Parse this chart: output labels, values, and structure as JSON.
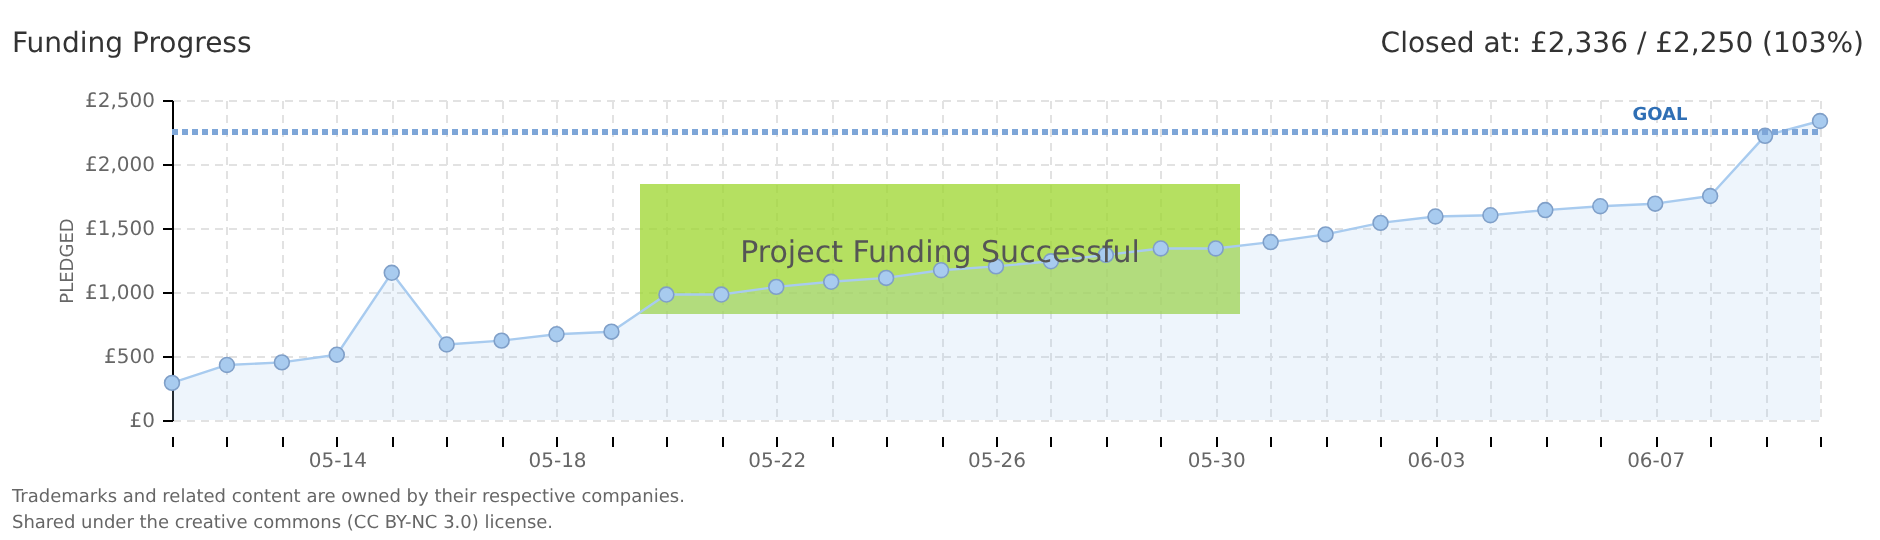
{
  "chart_data": {
    "type": "area",
    "title": "Funding Progress",
    "subtitle": "Closed at:  £2,336 / £2,250 (103%)",
    "ylabel": "PLEDGED",
    "categories": [
      null,
      null,
      null,
      "05-14",
      null,
      null,
      null,
      "05-18",
      null,
      null,
      null,
      "05-22",
      null,
      null,
      null,
      "05-26",
      null,
      null,
      null,
      "05-30",
      null,
      null,
      null,
      "06-03",
      null,
      null,
      null,
      "06-07",
      null,
      null,
      null
    ],
    "series": [
      {
        "color": "#a8cbef",
        "values": [
          290,
          430,
          450,
          510,
          1150,
          590,
          620,
          670,
          690,
          980,
          980,
          1040,
          1080,
          1110,
          1170,
          1200,
          1240,
          1290,
          1340,
          1340,
          1390,
          1450,
          1540,
          1590,
          1600,
          1640,
          1670,
          1690,
          1750,
          2220,
          2336
        ]
      }
    ],
    "ylim": [
      0,
      2500
    ],
    "yticks": [
      {
        "value": 0,
        "label": "£0"
      },
      {
        "value": 500,
        "label": "£500"
      },
      {
        "value": 1000,
        "label": "£1,000"
      },
      {
        "value": 1500,
        "label": "£1,500"
      },
      {
        "value": 2000,
        "label": "£2,000"
      },
      {
        "value": 2500,
        "label": "£2,500"
      }
    ],
    "ref_lines": [
      {
        "axis": "y",
        "value": 2250,
        "label": "GOAL",
        "color": "#7ea6d8",
        "line_style": "dotted"
      }
    ],
    "grid": true,
    "marker": "circle",
    "annotations": [
      "Project Funding Successful",
      "Trademarks and related content are owned by their respective companies.",
      "Shared under the creative commons (CC BY-NC 3.0) license."
    ]
  }
}
